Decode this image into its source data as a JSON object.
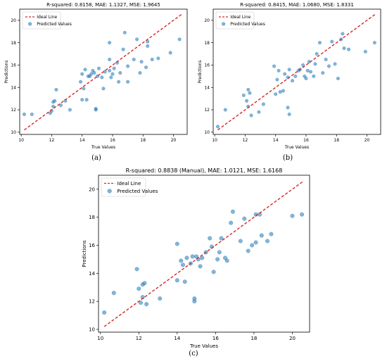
{
  "chart_data": [
    {
      "type": "scatter",
      "title": "R-squared: 0.8158, MAE: 1.1327, MSE: 1.9645",
      "xlabel": "True Values",
      "ylabel": "Predictions",
      "xlim": [
        9.9,
        20.9
      ],
      "ylim": [
        9.8,
        21.0
      ],
      "xticks": [
        10,
        12,
        14,
        16,
        18,
        20
      ],
      "yticks": [
        10,
        12,
        14,
        16,
        18,
        20
      ],
      "grid": false,
      "legend_position": "top-left",
      "caption": "(a)",
      "series": [
        {
          "name": "Ideal Line",
          "kind": "line",
          "color": "#d62728",
          "dashed": true,
          "x": [
            10.2,
            20.6
          ],
          "y": [
            10.2,
            20.6
          ]
        },
        {
          "name": "Predicted Values",
          "kind": "scatter",
          "color": "#1f77b4",
          "points": [
            [
              10.2,
              11.6
            ],
            [
              10.7,
              11.6
            ],
            [
              11.9,
              11.7
            ],
            [
              12.0,
              11.9
            ],
            [
              12.1,
              12.3
            ],
            [
              12.2,
              12.8
            ],
            [
              12.3,
              13.8
            ],
            [
              12.1,
              12.7
            ],
            [
              12.6,
              12.4
            ],
            [
              12.9,
              12.8
            ],
            [
              13.2,
              12.0
            ],
            [
              13.9,
              14.5
            ],
            [
              14.0,
              15.2
            ],
            [
              14.2,
              15.6
            ],
            [
              14.1,
              13.9
            ],
            [
              14.4,
              15.0
            ],
            [
              14.0,
              12.9
            ],
            [
              14.3,
              12.9
            ],
            [
              14.5,
              15.0
            ],
            [
              14.6,
              15.2
            ],
            [
              14.7,
              15.5
            ],
            [
              14.8,
              15.3
            ],
            [
              14.9,
              12.0
            ],
            [
              14.9,
              12.1
            ],
            [
              15.0,
              15.0
            ],
            [
              15.1,
              15.7
            ],
            [
              15.3,
              14.9
            ],
            [
              15.4,
              13.9
            ],
            [
              15.5,
              15.4
            ],
            [
              15.8,
              18.0
            ],
            [
              15.8,
              16.5
            ],
            [
              15.8,
              15.5
            ],
            [
              15.9,
              14.9
            ],
            [
              16.0,
              15.2
            ],
            [
              16.1,
              15.7
            ],
            [
              16.3,
              16.2
            ],
            [
              16.4,
              14.5
            ],
            [
              16.5,
              15.3
            ],
            [
              16.7,
              17.4
            ],
            [
              16.8,
              18.9
            ],
            [
              17.0,
              15.9
            ],
            [
              17.0,
              14.5
            ],
            [
              17.4,
              16.5
            ],
            [
              17.6,
              18.3
            ],
            [
              17.8,
              15.3
            ],
            [
              17.9,
              16.3
            ],
            [
              18.2,
              15.8
            ],
            [
              18.3,
              17.7
            ],
            [
              18.3,
              18.1
            ],
            [
              18.6,
              16.5
            ],
            [
              19.0,
              16.6
            ],
            [
              19.8,
              17.1
            ],
            [
              20.4,
              18.3
            ]
          ]
        }
      ]
    },
    {
      "type": "scatter",
      "title": "R-squared: 0.8415, MAE: 1.0680, MSE: 1.8331",
      "xlabel": "True Values",
      "ylabel": "Predictions",
      "xlim": [
        9.9,
        20.9
      ],
      "ylim": [
        9.8,
        21.0
      ],
      "xticks": [
        10,
        12,
        14,
        16,
        18,
        20
      ],
      "yticks": [
        10,
        12,
        14,
        16,
        18,
        20
      ],
      "grid": false,
      "legend_position": "top-left",
      "caption": "(b)",
      "series": [
        {
          "name": "Ideal Line",
          "kind": "line",
          "color": "#d62728",
          "dashed": true,
          "x": [
            10.2,
            20.6
          ],
          "y": [
            10.2,
            20.6
          ]
        },
        {
          "name": "Predicted Values",
          "kind": "scatter",
          "color": "#1f77b4",
          "points": [
            [
              10.2,
              10.5
            ],
            [
              10.7,
              12.0
            ],
            [
              11.9,
              13.3
            ],
            [
              12.1,
              12.8
            ],
            [
              12.2,
              13.8
            ],
            [
              12.3,
              13.5
            ],
            [
              12.2,
              12.3
            ],
            [
              12.4,
              11.5
            ],
            [
              12.9,
              11.8
            ],
            [
              13.2,
              12.5
            ],
            [
              13.9,
              15.9
            ],
            [
              14.0,
              13.4
            ],
            [
              14.1,
              14.7
            ],
            [
              14.2,
              15.5
            ],
            [
              14.3,
              13.6
            ],
            [
              14.5,
              13.7
            ],
            [
              14.6,
              15.2
            ],
            [
              14.8,
              14.9
            ],
            [
              14.8,
              12.2
            ],
            [
              14.9,
              11.6
            ],
            [
              14.9,
              15.6
            ],
            [
              15.1,
              14.6
            ],
            [
              15.3,
              15.0
            ],
            [
              15.5,
              15.5
            ],
            [
              15.6,
              15.6
            ],
            [
              15.8,
              16.0
            ],
            [
              15.9,
              15.0
            ],
            [
              16.0,
              14.8
            ],
            [
              16.1,
              15.5
            ],
            [
              16.2,
              16.3
            ],
            [
              16.3,
              15.4
            ],
            [
              16.5,
              15.0
            ],
            [
              16.6,
              16.1
            ],
            [
              16.7,
              17.0
            ],
            [
              16.9,
              18.0
            ],
            [
              17.1,
              15.3
            ],
            [
              17.3,
              16.5
            ],
            [
              17.5,
              15.9
            ],
            [
              17.7,
              18.1
            ],
            [
              17.9,
              16.1
            ],
            [
              18.1,
              14.8
            ],
            [
              18.3,
              18.3
            ],
            [
              18.4,
              18.8
            ],
            [
              18.5,
              17.5
            ],
            [
              18.8,
              17.4
            ],
            [
              19.9,
              17.2
            ],
            [
              20.5,
              18.0
            ]
          ]
        }
      ]
    },
    {
      "type": "scatter",
      "title": "R-squared: 0.8838 (Manual), MAE: 1.0121, MSE: 1.6168",
      "xlabel": "True Values",
      "ylabel": "Predictions",
      "xlim": [
        9.9,
        20.9
      ],
      "ylim": [
        9.8,
        21.0
      ],
      "xticks": [
        10,
        12,
        14,
        16,
        18,
        20
      ],
      "yticks": [
        10,
        12,
        14,
        16,
        18,
        20
      ],
      "grid": false,
      "legend_position": "top-left",
      "caption": "(c)",
      "series": [
        {
          "name": "Ideal Line",
          "kind": "line",
          "color": "#d62728",
          "dashed": true,
          "x": [
            10.2,
            20.6
          ],
          "y": [
            10.2,
            20.6
          ]
        },
        {
          "name": "Predicted Values",
          "kind": "scatter",
          "color": "#1f77b4",
          "points": [
            [
              10.2,
              11.2
            ],
            [
              10.7,
              12.6
            ],
            [
              11.9,
              14.3
            ],
            [
              12.0,
              12.9
            ],
            [
              12.2,
              13.2
            ],
            [
              12.3,
              13.3
            ],
            [
              12.2,
              12.3
            ],
            [
              12.4,
              11.8
            ],
            [
              12.1,
              11.9
            ],
            [
              13.1,
              12.2
            ],
            [
              14.0,
              16.1
            ],
            [
              14.2,
              14.9
            ],
            [
              14.3,
              14.6
            ],
            [
              14.0,
              13.5
            ],
            [
              14.4,
              13.4
            ],
            [
              14.5,
              15.1
            ],
            [
              14.7,
              14.7
            ],
            [
              14.8,
              15.2
            ],
            [
              14.9,
              12.0
            ],
            [
              14.9,
              12.2
            ],
            [
              15.0,
              15.2
            ],
            [
              15.1,
              15.0
            ],
            [
              15.2,
              14.5
            ],
            [
              15.3,
              15.1
            ],
            [
              15.5,
              15.5
            ],
            [
              15.7,
              16.5
            ],
            [
              15.8,
              15.9
            ],
            [
              15.9,
              14.1
            ],
            [
              16.1,
              15.0
            ],
            [
              16.2,
              15.5
            ],
            [
              16.3,
              16.5
            ],
            [
              16.5,
              15.1
            ],
            [
              16.6,
              14.9
            ],
            [
              16.8,
              17.6
            ],
            [
              16.9,
              18.4
            ],
            [
              17.3,
              16.3
            ],
            [
              17.5,
              17.9
            ],
            [
              17.7,
              15.6
            ],
            [
              17.9,
              16.0
            ],
            [
              18.1,
              16.2
            ],
            [
              18.1,
              18.2
            ],
            [
              18.3,
              18.2
            ],
            [
              18.4,
              16.7
            ],
            [
              18.7,
              16.3
            ],
            [
              18.9,
              16.8
            ],
            [
              20.0,
              18.1
            ],
            [
              20.5,
              18.2
            ]
          ]
        }
      ]
    }
  ]
}
